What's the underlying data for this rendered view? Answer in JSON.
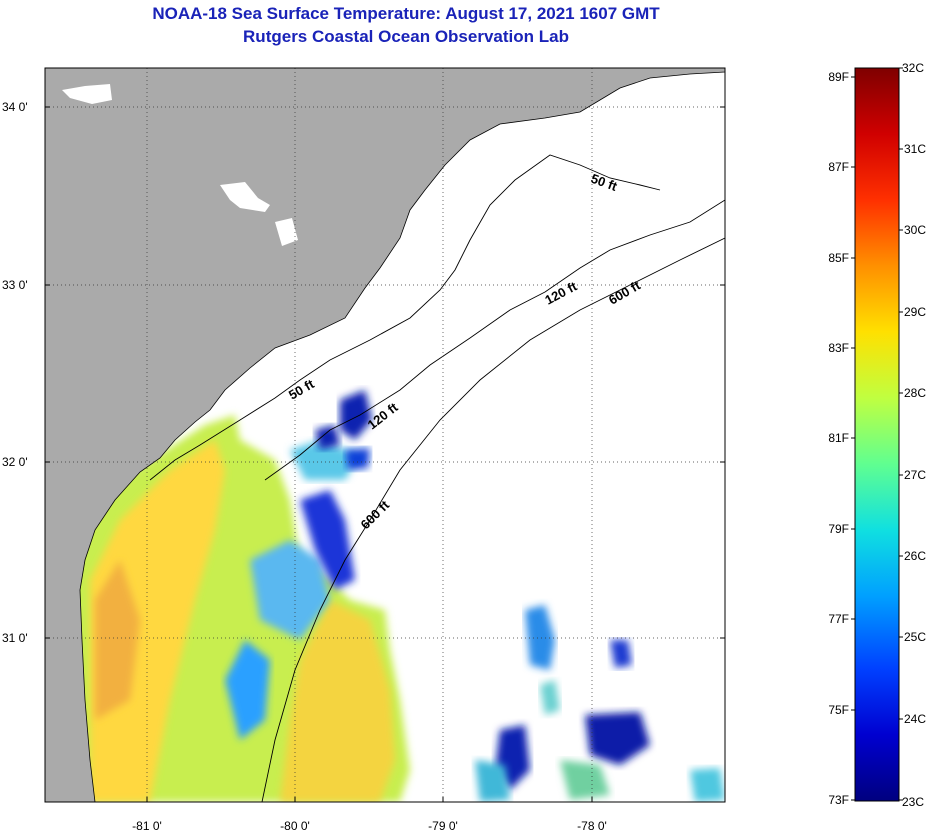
{
  "title": {
    "line1": "NOAA-18 Sea Surface Temperature:  August 17, 2021 1607 GMT",
    "line2": "Rutgers Coastal Ocean Observation Lab"
  },
  "map": {
    "lat_labels": [
      "34 0'",
      "33 0'",
      "32 0'",
      "31 0'"
    ],
    "lon_labels": [
      "-81 0'",
      "-80 0'",
      "-79 0'",
      "-78 0'"
    ],
    "contour_labels": [
      "50 ft",
      "120 ft",
      "600 ft",
      "50 ft",
      "120 ft",
      "600 ft"
    ],
    "colors": {
      "land": "#aaaaaa",
      "ocean_nodata": "#ffffff",
      "grid": "#333333"
    }
  },
  "colorbar": {
    "fahrenheit_labels": [
      "89F",
      "87F",
      "85F",
      "83F",
      "81F",
      "79F",
      "77F",
      "75F",
      "73F"
    ],
    "celsius_labels": [
      "32C",
      "31C",
      "30C",
      "29C",
      "28C",
      "27C",
      "26C",
      "25C",
      "24C",
      "23C"
    ],
    "colors": [
      "#00007f",
      "#0000d0",
      "#0040ff",
      "#00a0ff",
      "#10e0e0",
      "#60ff90",
      "#c0ff40",
      "#ffe000",
      "#ff9000",
      "#ff3000",
      "#d00000",
      "#7f0000"
    ]
  }
}
